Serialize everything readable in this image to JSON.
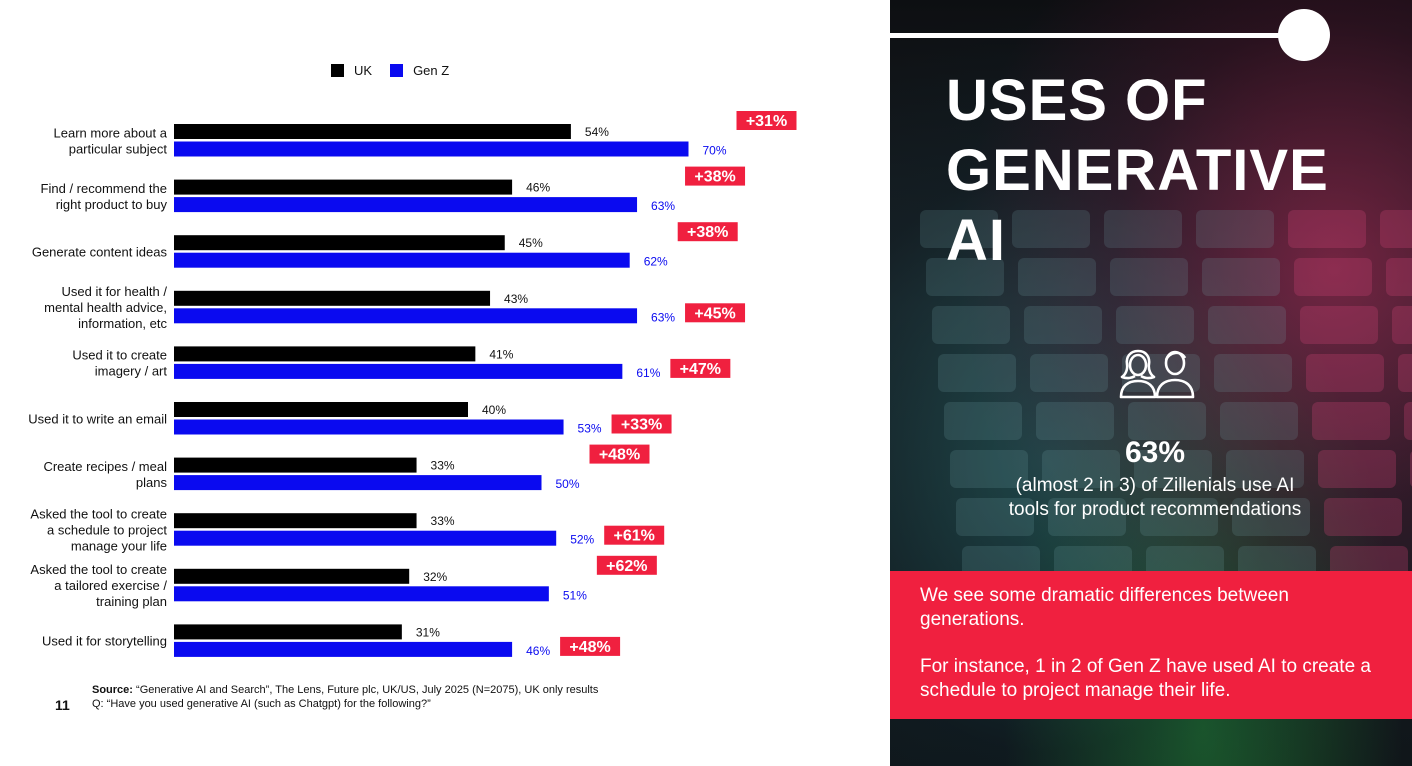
{
  "legend": [
    {
      "name": "UK",
      "color": "#000000"
    },
    {
      "name": "Gen Z",
      "color": "#0a0af0"
    }
  ],
  "chart_data": {
    "type": "bar",
    "orientation": "horizontal",
    "categories": [
      [
        "Learn more about a",
        "particular subject"
      ],
      [
        "Find / recommend the",
        "right product to buy"
      ],
      [
        "Generate content ideas"
      ],
      [
        "Used it for health /",
        "mental health advice,",
        "information, etc"
      ],
      [
        "Used it to create",
        "imagery / art"
      ],
      [
        "Used it to write an email"
      ],
      [
        "Create recipes / meal",
        "plans"
      ],
      [
        "Asked the tool to create",
        "a schedule to project",
        "manage your life"
      ],
      [
        "Asked the tool to create",
        "a tailored exercise /",
        "training plan"
      ],
      [
        "Used it for storytelling"
      ]
    ],
    "series": [
      {
        "name": "UK",
        "color": "#000000",
        "values": [
          54,
          46,
          45,
          43,
          41,
          40,
          33,
          33,
          32,
          31
        ]
      },
      {
        "name": "Gen Z",
        "color": "#0a0af0",
        "values": [
          70,
          63,
          62,
          63,
          61,
          53,
          50,
          52,
          51,
          46
        ]
      }
    ],
    "value_labels": {
      "UK": [
        "54%",
        "46%",
        "45%",
        "43%",
        "41%",
        "40%",
        "33%",
        "33%",
        "32%",
        "31%"
      ],
      "Gen Z": [
        "70%",
        "63%",
        "62%",
        "63%",
        "61%",
        "53%",
        "50%",
        "52%",
        "51%",
        "46%"
      ]
    },
    "difference_labels": [
      "+31%",
      "+38%",
      "+38%",
      "+45%",
      "+47%",
      "+33%",
      "+48%",
      "+61%",
      "+62%",
      "+48%"
    ],
    "difference_color": "#f0203f",
    "xlim": [
      0,
      100
    ],
    "grid": false,
    "legend_position": "top"
  },
  "page_number": "11",
  "source": {
    "label": "Source:",
    "text": " “Generative AI and Search”, The Lens, Future plc, UK/US, July 2025 (N=2075), UK only results",
    "question": "Q: “Have you used generative AI (such as Chatgpt) for the following?”"
  },
  "panel": {
    "title_lines": [
      "USES OF",
      "GENERATIVE",
      "AI"
    ],
    "icon": "two-people-icon",
    "stat_value": "63%",
    "stat_caption": "(almost 2 in 3) of Zillenials use AI tools for product recommendations",
    "box_paragraphs": [
      "We see some dramatic differences between generations.",
      "For instance, 1 in 2 of Gen Z have used AI to create a schedule to project manage their life."
    ],
    "accent_color": "#f0203f"
  }
}
